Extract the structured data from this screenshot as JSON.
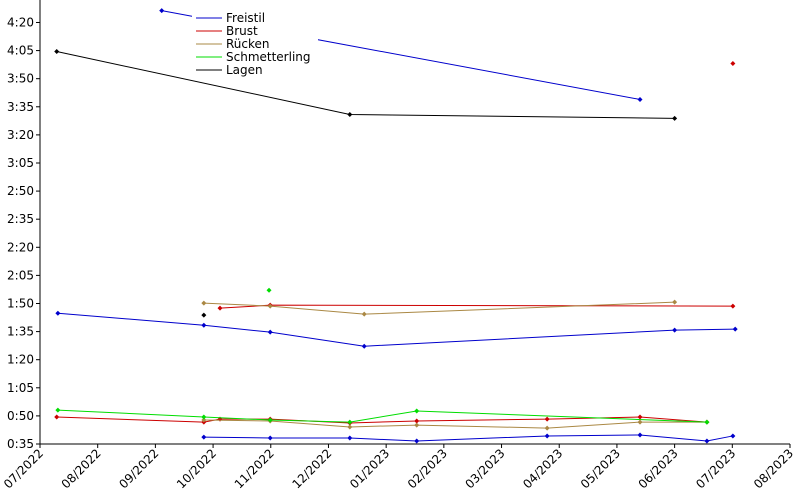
{
  "chart_data": {
    "type": "line",
    "xlim": [
      0,
      13
    ],
    "xticks": [
      {
        "value": 0,
        "label": "07/2022"
      },
      {
        "value": 1,
        "label": "08/2022"
      },
      {
        "value": 2,
        "label": "09/2022"
      },
      {
        "value": 3,
        "label": "10/2022"
      },
      {
        "value": 4,
        "label": "11/2022"
      },
      {
        "value": 5,
        "label": "12/2022"
      },
      {
        "value": 6,
        "label": "01/2023"
      },
      {
        "value": 7,
        "label": "02/2023"
      },
      {
        "value": 8,
        "label": "03/2023"
      },
      {
        "value": 9,
        "label": "04/2023"
      },
      {
        "value": 10,
        "label": "05/2023"
      },
      {
        "value": 11,
        "label": "06/2023"
      },
      {
        "value": 12,
        "label": "07/2023"
      },
      {
        "value": 13,
        "label": "08/2023"
      }
    ],
    "ylim": [
      35,
      272
    ],
    "yticks": [
      {
        "value": 35,
        "label": "0:35"
      },
      {
        "value": 50,
        "label": "0:50"
      },
      {
        "value": 65,
        "label": "1:05"
      },
      {
        "value": 80,
        "label": "1:20"
      },
      {
        "value": 95,
        "label": "1:35"
      },
      {
        "value": 110,
        "label": "1:50"
      },
      {
        "value": 125,
        "label": "2:05"
      },
      {
        "value": 140,
        "label": "2:20"
      },
      {
        "value": 155,
        "label": "2:35"
      },
      {
        "value": 170,
        "label": "2:50"
      },
      {
        "value": 185,
        "label": "3:05"
      },
      {
        "value": 200,
        "label": "3:20"
      },
      {
        "value": 215,
        "label": "3:35"
      },
      {
        "value": 230,
        "label": "3:50"
      },
      {
        "value": 245,
        "label": "4:05"
      },
      {
        "value": 260,
        "label": "4:20"
      }
    ],
    "series": [
      {
        "name": "Freistil",
        "color": "#0000cc",
        "lines": [
          {
            "x": [
              2.11,
              10.4
            ],
            "values": [
              266.3,
              218.9
            ]
          },
          {
            "x": [
              0.31,
              2.84,
              3.99,
              5.62,
              11.0,
              12.05
            ],
            "values": [
              104.8,
              98.4,
              94.7,
              87.2,
              95.8,
              96.3
            ]
          },
          {
            "x": [
              2.84,
              3.99,
              5.37,
              6.53,
              8.79,
              10.4,
              11.56,
              12.01
            ],
            "values": [
              38.7,
              38.2,
              38.2,
              36.6,
              39.3,
              39.8,
              36.6,
              39.3
            ]
          }
        ]
      },
      {
        "name": "Brust",
        "color": "#cc0000",
        "lines": [
          {
            "x": [
              12.01
            ],
            "values": [
              238.1
            ]
          },
          {
            "x": [
              3.12,
              3.99,
              12.01
            ],
            "values": [
              107.5,
              109.1,
              108.6
            ]
          },
          {
            "x": [
              0.29,
              2.84,
              3.12,
              3.99,
              5.37,
              6.53,
              8.79,
              10.4,
              11.56
            ],
            "values": [
              49.4,
              46.7,
              48.3,
              48.3,
              46.2,
              47.3,
              48.3,
              49.4,
              46.7
            ]
          }
        ]
      },
      {
        "name": "Rücken",
        "color": "#aa8844",
        "lines": [
          {
            "x": [
              2.84,
              3.99,
              5.62,
              11.0
            ],
            "values": [
              110.2,
              108.6,
              104.3,
              110.7
            ]
          },
          {
            "x": [
              2.84,
              3.99,
              5.37,
              6.53,
              8.79,
              10.4,
              11.56
            ],
            "values": [
              47.8,
              47.3,
              44.1,
              45.1,
              43.5,
              46.7,
              46.7
            ]
          }
        ]
      },
      {
        "name": "Schmetterling",
        "color": "#00dd00",
        "lines": [
          {
            "x": [
              3.97
            ],
            "values": [
              117.1
            ]
          },
          {
            "x": [
              0.31,
              2.84,
              3.99,
              5.37,
              6.53,
              11.56
            ],
            "values": [
              53.1,
              49.4,
              47.8,
              46.7,
              52.6,
              46.7
            ]
          }
        ]
      },
      {
        "name": "Lagen",
        "color": "#000000",
        "lines": [
          {
            "x": [
              0.29,
              5.37,
              11.0
            ],
            "values": [
              244.5,
              210.9,
              208.8
            ]
          },
          {
            "x": [
              2.84
            ],
            "values": [
              103.8
            ]
          }
        ]
      }
    ]
  }
}
